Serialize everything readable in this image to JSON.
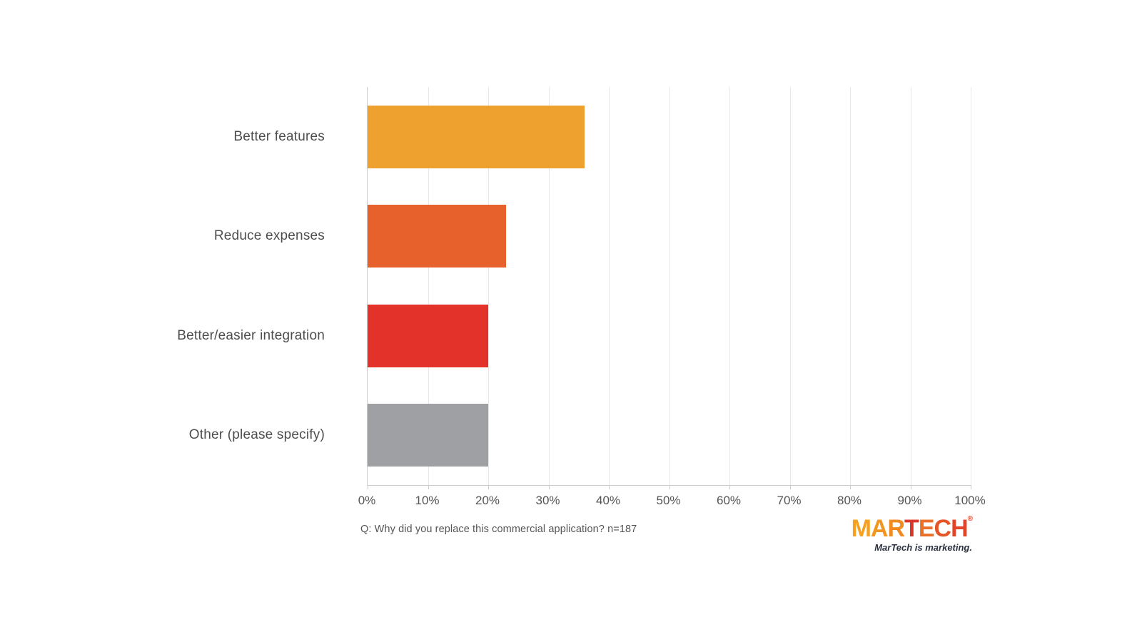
{
  "chart_data": {
    "type": "bar",
    "orientation": "horizontal",
    "title": "",
    "xlabel": "",
    "ylabel": "",
    "categories": [
      "Better features",
      "Reduce expenses",
      "Better/easier integration",
      "Other (please specify)"
    ],
    "values": [
      36,
      23,
      20,
      20
    ],
    "value_unit": "%",
    "bar_colors": [
      "#EFA130",
      "#E7612C",
      "#E2322A",
      "#9EA0A3"
    ],
    "xlim": [
      0,
      100
    ],
    "x_tick_labels": [
      "0%",
      "10%",
      "20%",
      "30%",
      "40%",
      "50%",
      "60%",
      "70%",
      "80%",
      "90%",
      "100%"
    ],
    "grid": "vertical",
    "legend": "none",
    "gridline_color": "#e8e8e8",
    "axis_line_color": "#cccccc",
    "tick_label_color": "#555555",
    "category_label_color": "#4d4d4d"
  },
  "caption": {
    "text": "Q: Why did you replace this commercial application? n=187"
  },
  "logo": {
    "brand": "MARTECH",
    "registered_mark": "®",
    "tagline": "MarTech is marketing.",
    "letter_colors": [
      "#F6A11E",
      "#F3961F",
      "#F08A22",
      "#D93829",
      "#EB6F26",
      "#E65527",
      "#E24428"
    ],
    "registered_mark_color": "#E24428",
    "tagline_color": "#2A3140"
  }
}
